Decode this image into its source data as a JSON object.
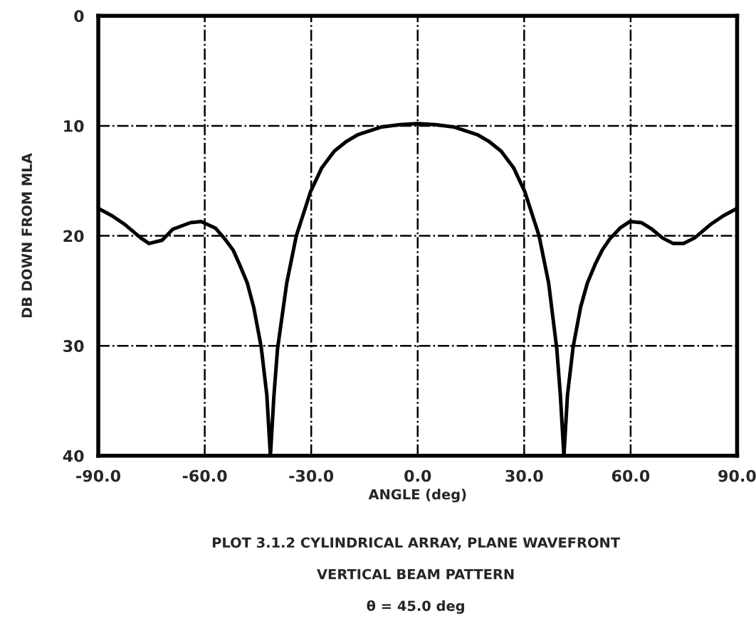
{
  "chart_data": {
    "type": "line",
    "title": "PLOT 3.1.2 CYLINDRICAL ARRAY, PLANE WAVEFRONT",
    "subtitle": "VERTICAL BEAM PATTERN",
    "annotations": [
      "θ = 45.0 deg"
    ],
    "xlabel": "ANGLE (deg)",
    "ylabel": "DB DOWN FROM MLA",
    "series": [
      {
        "color": "#000000",
        "x": [
          -90,
          -86,
          -82.4,
          -78,
          -75.7,
          -72,
          -69,
          -64,
          -61,
          -57,
          -54.3,
          -52,
          -50.2,
          -48,
          -46.2,
          -44.1,
          -42.5,
          -41.5,
          -40.5,
          -39.5,
          -36.9,
          -34.2,
          -30.2,
          -27,
          -23.5,
          -20,
          -16.8,
          -10.1,
          -5,
          0,
          5,
          10.1,
          16.8,
          20,
          23.5,
          27,
          30.2,
          34.2,
          36.9,
          39.2,
          40.2,
          41.2,
          42.2,
          43.8,
          45.9,
          47.8,
          50,
          52,
          54.1,
          57,
          59.8,
          63,
          66,
          69,
          72,
          74.9,
          78,
          82.4,
          86,
          90
        ],
        "values": [
          17.5,
          18.2,
          19.0,
          20.2,
          20.7,
          20.4,
          19.4,
          18.8,
          18.7,
          19.3,
          20.3,
          21.3,
          22.6,
          24.3,
          26.5,
          30.1,
          34.5,
          40,
          34.5,
          30.3,
          24.3,
          20.0,
          16.0,
          13.8,
          12.3,
          11.4,
          10.8,
          10.1,
          9.9,
          9.8,
          9.9,
          10.1,
          10.8,
          11.4,
          12.3,
          13.8,
          16.0,
          20.0,
          24.3,
          30.3,
          34.5,
          40,
          34.5,
          30.1,
          26.5,
          24.3,
          22.6,
          21.3,
          20.3,
          19.3,
          18.7,
          18.8,
          19.4,
          20.2,
          20.7,
          20.7,
          20.2,
          19.0,
          18.2,
          17.5
        ]
      }
    ],
    "xlim": [
      -90,
      90
    ],
    "xticks": [
      {
        "value": -90,
        "label": "-90.0"
      },
      {
        "value": -60,
        "label": "-60.0"
      },
      {
        "value": -30,
        "label": "-30.0"
      },
      {
        "value": 0,
        "label": "0.0"
      },
      {
        "value": 30,
        "label": "30.0"
      },
      {
        "value": 60,
        "label": "60.0"
      },
      {
        "value": 90,
        "label": "90.0"
      }
    ],
    "ylim": [
      40,
      0
    ],
    "yticks": [
      0,
      10,
      20,
      30,
      40
    ],
    "grid": true,
    "marker": "none",
    "line_style": "solid"
  }
}
